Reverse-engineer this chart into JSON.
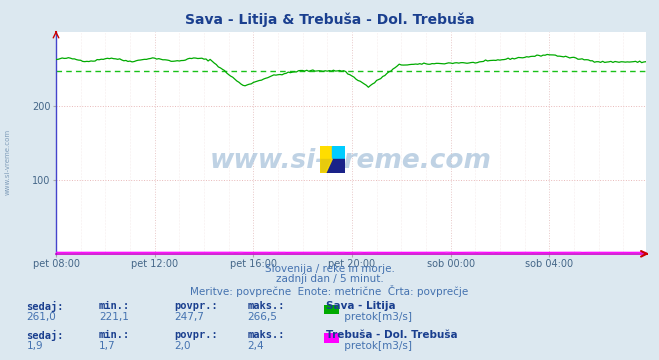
{
  "title": "Sava - Litija & Trebuša - Dol. Trebuša",
  "title_color": "#1a3f8f",
  "bg_color": "#dce8f0",
  "plot_bg_color": "#ffffff",
  "grid_color": "#e8b0b0",
  "grid_color_v": "#ddc8c8",
  "avg_line_color": "#00bb00",
  "x_ticks": [
    "pet 08:00",
    "pet 12:00",
    "pet 16:00",
    "pet 20:00",
    "sob 00:00",
    "sob 04:00"
  ],
  "x_tick_positions": [
    0,
    48,
    96,
    144,
    192,
    240
  ],
  "y_ticks": [
    100,
    200
  ],
  "ylim": [
    0,
    300
  ],
  "xlim": [
    0,
    287
  ],
  "sava_color": "#00aa00",
  "trebusa_color": "#ff00ff",
  "sava_avg": 247.7,
  "sava_min": 221.1,
  "sava_max": 266.5,
  "sava_sedaj": 261.0,
  "trebusa_min": 1.7,
  "trebusa_max": 2.4,
  "trebusa_sedaj": 1.9,
  "trebusa_povpr": 2.0,
  "watermark": "www.si-vreme.com",
  "subtitle1": "Slovenija / reke in morje.",
  "subtitle2": "zadnji dan / 5 minut.",
  "subtitle3": "Meritve: povprečne  Enote: metrične  Črta: povprečje",
  "label_sava": "Sava - Litija",
  "label_trebusa": "Trebuša - Dol. Trebuša",
  "unit": "pretok[m3/s]",
  "text_color": "#4472b0",
  "text_color_bold": "#1a3f8f",
  "left_spine_color": "#4444cc",
  "bottom_spine_color": "#cc00cc",
  "right_arrow_color": "#cc0000"
}
